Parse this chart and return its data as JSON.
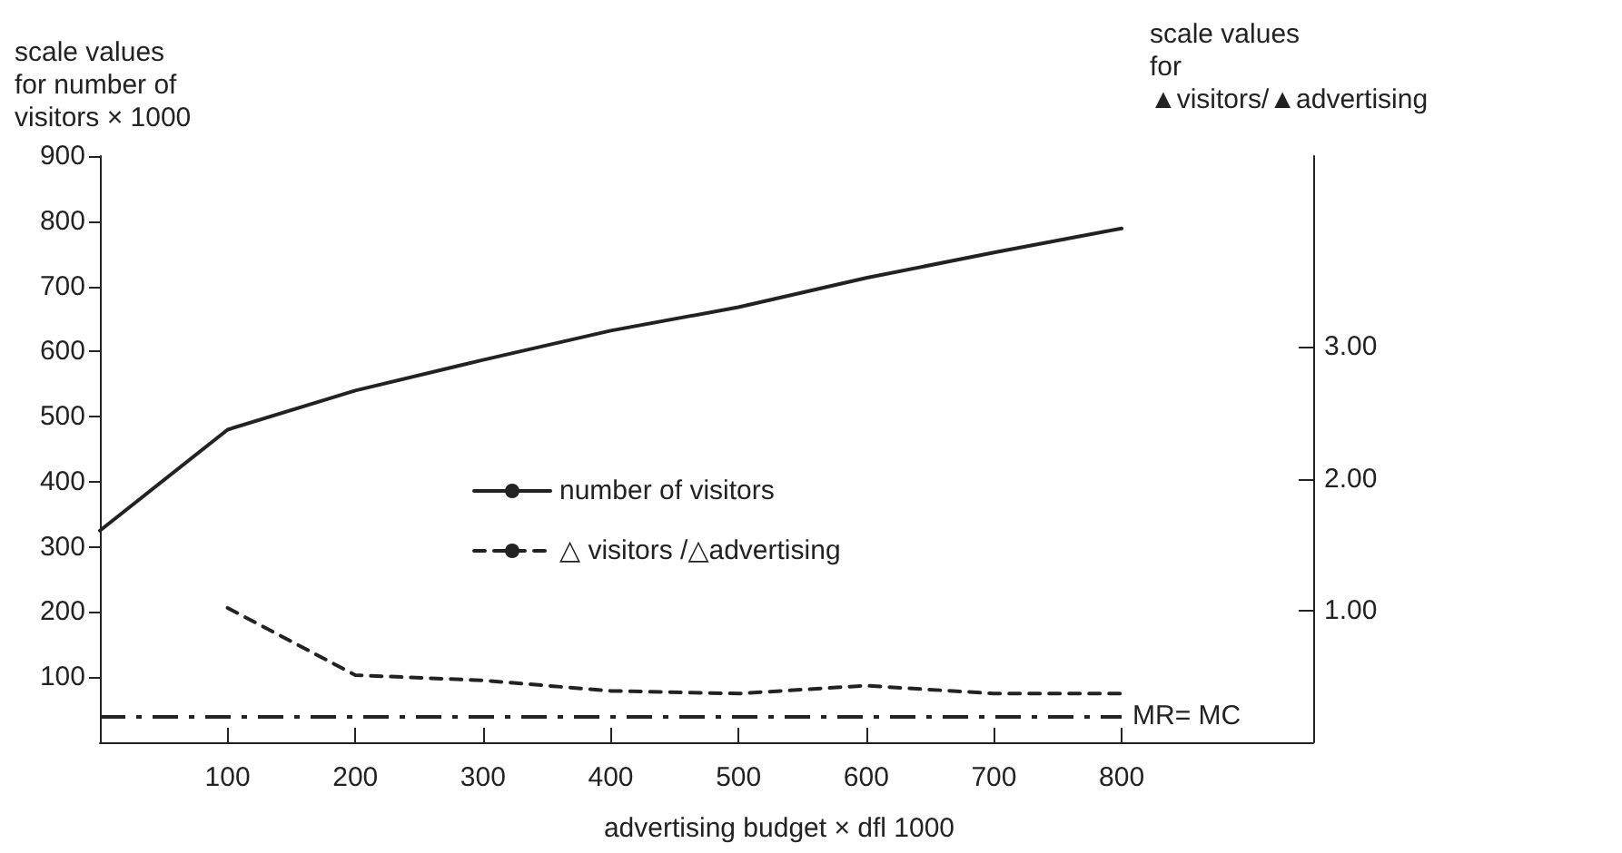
{
  "chart_data": {
    "type": "line",
    "xlabel": "advertising budget × dfl 1000",
    "ylabel": "scale values\nfor number of\nvisitors × 1000",
    "y2label": "scale values\nfor\n▲visitors/▲advertising",
    "x": [
      0,
      100,
      200,
      300,
      400,
      500,
      600,
      700,
      800
    ],
    "series": [
      {
        "name": "number of visitors",
        "color": "#222222",
        "line_style": "solid",
        "values": [
          325,
          480,
          540,
          587,
          632,
          668,
          713,
          752,
          789
        ]
      },
      {
        "name": "△ visitors /△advertising",
        "color": "#222222",
        "line_style": "dashed",
        "axis": "y2",
        "values": [
          null,
          1.02,
          0.51,
          0.47,
          0.39,
          0.37,
          0.43,
          0.37,
          0.37
        ]
      }
    ],
    "xlim": [
      0,
      950
    ],
    "xticks": [
      100,
      200,
      300,
      400,
      500,
      600,
      700,
      800
    ],
    "ylim": [
      0,
      900
    ],
    "yticks": [
      100,
      200,
      300,
      400,
      500,
      600,
      700,
      800,
      900
    ],
    "y2lim": [
      0,
      4.45
    ],
    "y2ticks": [
      {
        "value": 1,
        "label": "1.00"
      },
      {
        "value": 2,
        "label": "2.00"
      },
      {
        "value": 3,
        "label": "3.00"
      }
    ],
    "ref_lines": [
      {
        "axis": "y2",
        "value": 0.2,
        "label": "MR= MC",
        "line_style": "dashdot",
        "color": "#222222"
      }
    ],
    "legend": "center",
    "grid": false,
    "marker": "none"
  }
}
